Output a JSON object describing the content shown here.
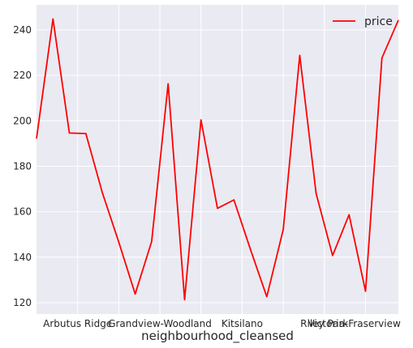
{
  "chart_data": {
    "type": "line",
    "xlabel": "neighbourhood_cleansed",
    "ylabel": "",
    "ylim": [
      115,
      251
    ],
    "yticks": [
      120,
      140,
      160,
      180,
      200,
      220,
      240
    ],
    "xlim": [
      0,
      22
    ],
    "xtick_labels": [
      {
        "index": 2.5,
        "label": "Arbutus Ridge"
      },
      {
        "index": 5,
        "label": ""
      },
      {
        "index": 7.5,
        "label": "Grandview-Woodland"
      },
      {
        "index": 10,
        "label": ""
      },
      {
        "index": 12.5,
        "label": "Kitsilano"
      },
      {
        "index": 15,
        "label": ""
      },
      {
        "index": 17.5,
        "label": "Riley Park"
      },
      {
        "index": 20,
        "label": ""
      },
      {
        "index": 22.5,
        "label": "Victoria-Fraserview"
      }
    ],
    "grid": true,
    "legend_position": "top-right",
    "series": [
      {
        "name": "price",
        "color": "#ff0000",
        "x": [
          0,
          1,
          2,
          3,
          4,
          5,
          6,
          7,
          8,
          9,
          10,
          11,
          12,
          13,
          14,
          15,
          16,
          17,
          18,
          19,
          20,
          21,
          22
        ],
        "values": [
          192.2,
          244.8,
          194.6,
          194.4,
          168.4,
          146.6,
          123.8,
          146.9,
          216.3,
          121.3,
          200.4,
          161.5,
          165.2,
          143.6,
          122.6,
          152.2,
          228.8,
          168.0,
          140.7,
          158.7,
          125.0,
          227.6,
          244.3
        ]
      }
    ]
  }
}
